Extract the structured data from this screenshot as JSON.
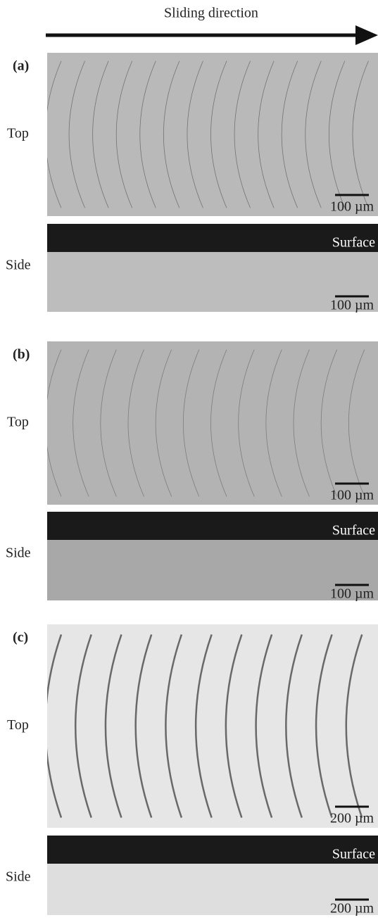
{
  "header": {
    "title": "Sliding direction"
  },
  "panels": [
    {
      "label": "(a)",
      "top": {
        "label": "Top",
        "scale": "100 µm"
      },
      "side": {
        "label": "Side",
        "surface": "Surface",
        "scale": "100 µm"
      }
    },
    {
      "label": "(b)",
      "top": {
        "label": "Top",
        "scale": "100 µm"
      },
      "side": {
        "label": "Side",
        "surface": "Surface",
        "scale": "100 µm"
      }
    },
    {
      "label": "(c)",
      "top": {
        "label": "Top",
        "scale": "200 µm"
      },
      "side": {
        "label": "Side",
        "surface": "Surface",
        "scale": "200 µm"
      }
    }
  ]
}
